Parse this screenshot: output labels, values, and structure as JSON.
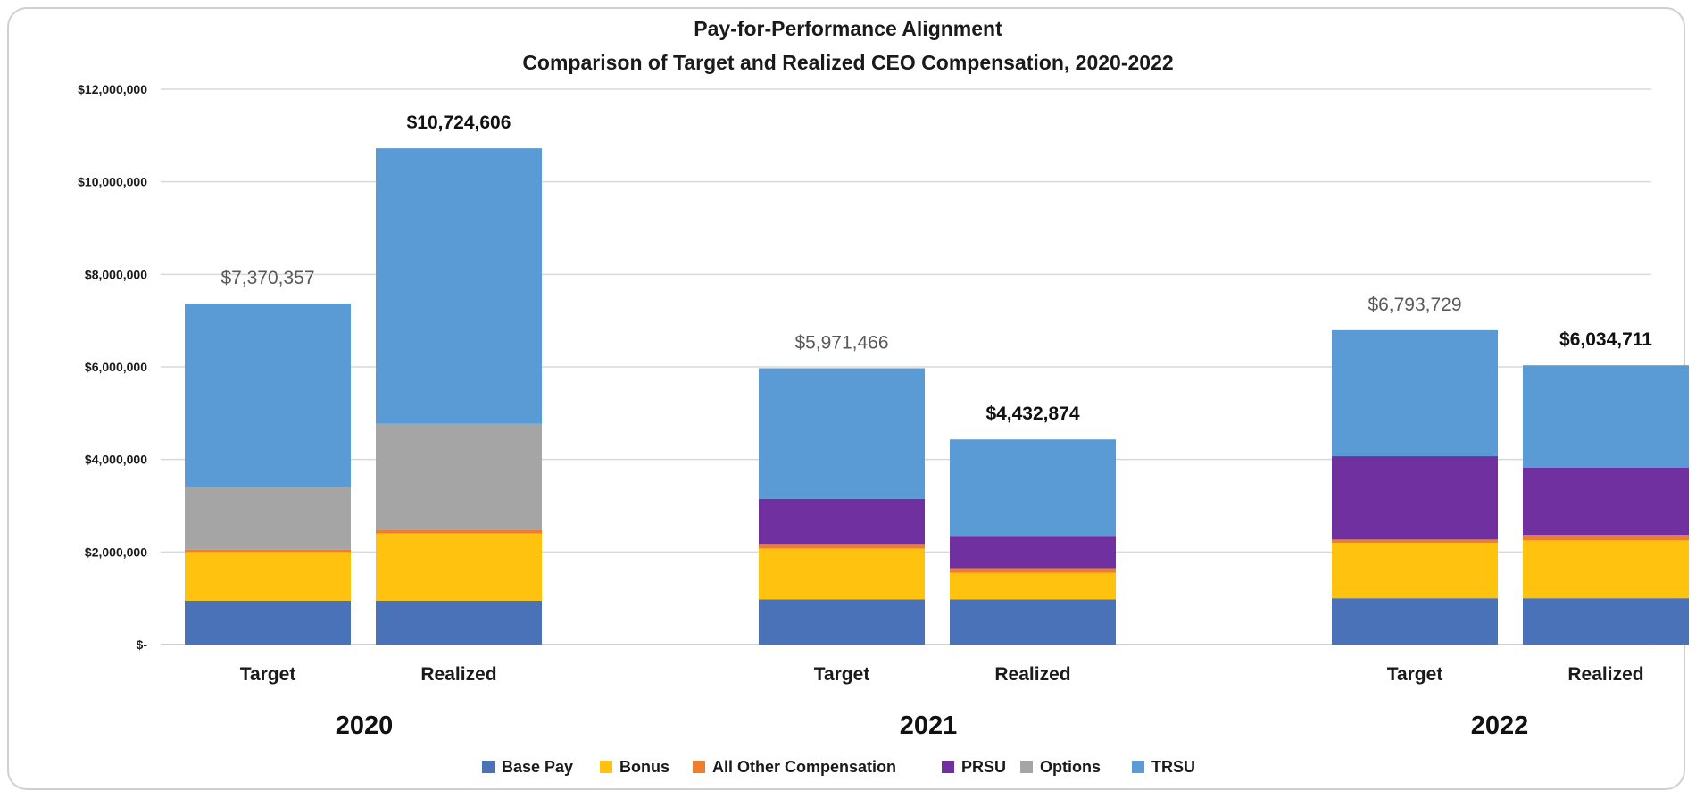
{
  "chart_data": {
    "type": "bar",
    "stacked": true,
    "title": "Pay-for-Performance Alignment",
    "subtitle": "Comparison of Target and Realized CEO Compensation, 2020-2022",
    "xlabel": "",
    "ylabel": "",
    "ylim": [
      0,
      12000000
    ],
    "yticks": [
      0,
      2000000,
      4000000,
      6000000,
      8000000,
      10000000,
      12000000
    ],
    "ytick_labels": [
      "$-",
      "$2,000,000",
      "$4,000,000",
      "$6,000,000",
      "$8,000,000",
      "$10,000,000",
      "$12,000,000"
    ],
    "grid": true,
    "legend_position": "bottom",
    "groups": [
      "2020",
      "2021",
      "2022"
    ],
    "categories": [
      "Target",
      "Realized",
      "Target",
      "Realized",
      "Target",
      "Realized"
    ],
    "category_group": [
      0,
      0,
      1,
      1,
      2,
      2
    ],
    "series": [
      {
        "name": "Base Pay",
        "color": "#4a72b8",
        "values": [
          950000,
          950000,
          975000,
          975000,
          1000000,
          1000000
        ]
      },
      {
        "name": "Bonus",
        "color": "#ffc20e",
        "values": [
          1050000,
          1450000,
          1100000,
          575000,
          1200000,
          1250000
        ]
      },
      {
        "name": "All Other Compensation",
        "color": "#ed7d31",
        "values": [
          50000,
          70000,
          100000,
          100000,
          70000,
          120000
        ]
      },
      {
        "name": "PRSU",
        "color": "#7030a0",
        "values": [
          0,
          0,
          975000,
          700000,
          1800000,
          1450000
        ]
      },
      {
        "name": "Options",
        "color": "#a5a5a5",
        "values": [
          1350000,
          2300000,
          0,
          0,
          0,
          0
        ]
      },
      {
        "name": "TRSU",
        "color": "#5b9bd5",
        "values": [
          3970357,
          5954606,
          2821466,
          2082874,
          2723729,
          2214711
        ]
      }
    ],
    "totals": [
      "$7,370,357",
      "$10,724,606",
      "$5,971,466",
      "$4,432,874",
      "$6,793,729",
      "$6,034,711"
    ],
    "total_label_colors": [
      "#595959",
      "#111111",
      "#595959",
      "#111111",
      "#595959",
      "#111111"
    ]
  }
}
